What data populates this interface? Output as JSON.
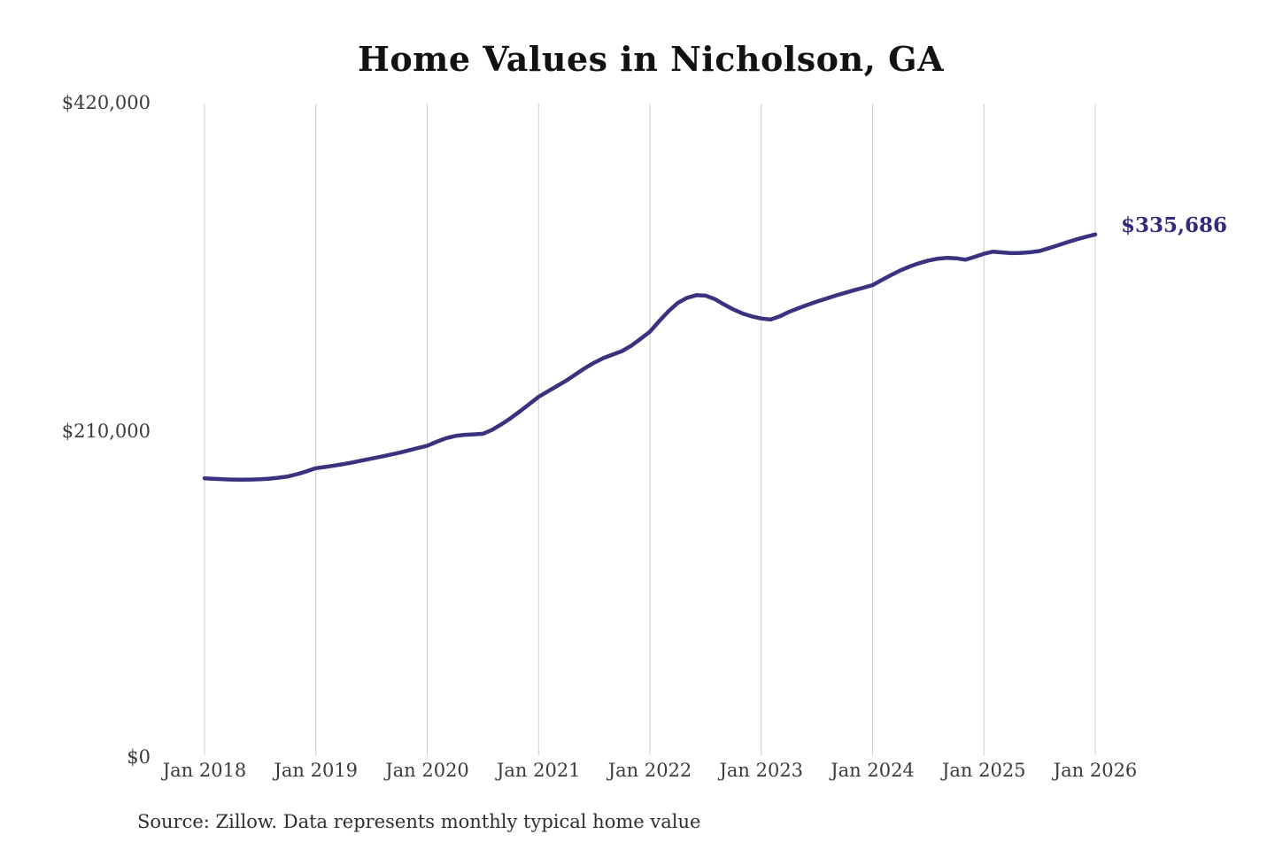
{
  "title": "Home Values in Nicholson, GA",
  "source_note": "Source: Zillow. Data represents monthly typical home value",
  "end_label": "$335,686",
  "colors": {
    "line": "#39327f",
    "end_label": "#312b7c",
    "grid": "#cccccc",
    "axis_text": "#3b3b3b",
    "title_text": "#121212",
    "background": "#ffffff"
  },
  "chart_data": {
    "type": "line",
    "title": "Home Values in Nicholson, GA",
    "series_name": "Monthly typical home value",
    "unit": "USD",
    "ylim": [
      0,
      420000
    ],
    "grid": "vertical-only",
    "legend": "none",
    "final_value": 335686,
    "y_ticks": [
      {
        "label": "$420,000",
        "value": 420000
      },
      {
        "label": "$210,000",
        "value": 210000
      },
      {
        "label": "$0",
        "value": 0
      }
    ],
    "x_ticks": [
      "Jan 2018",
      "Jan 2019",
      "Jan 2020",
      "Jan 2021",
      "Jan 2022",
      "Jan 2023",
      "Jan 2024",
      "Jan 2025",
      "Jan 2026"
    ],
    "x": [
      "2018-01",
      "2018-02",
      "2018-03",
      "2018-04",
      "2018-05",
      "2018-06",
      "2018-07",
      "2018-08",
      "2018-09",
      "2018-10",
      "2018-11",
      "2018-12",
      "2019-01",
      "2019-02",
      "2019-03",
      "2019-04",
      "2019-05",
      "2019-06",
      "2019-07",
      "2019-08",
      "2019-09",
      "2019-10",
      "2019-11",
      "2019-12",
      "2020-01",
      "2020-02",
      "2020-03",
      "2020-04",
      "2020-05",
      "2020-06",
      "2020-07",
      "2020-08",
      "2020-09",
      "2020-10",
      "2020-11",
      "2020-12",
      "2021-01",
      "2021-02",
      "2021-03",
      "2021-04",
      "2021-05",
      "2021-06",
      "2021-07",
      "2021-08",
      "2021-09",
      "2021-10",
      "2021-11",
      "2021-12",
      "2022-01",
      "2022-02",
      "2022-03",
      "2022-04",
      "2022-05",
      "2022-06",
      "2022-07",
      "2022-08",
      "2022-09",
      "2022-10",
      "2022-11",
      "2022-12",
      "2023-01",
      "2023-02",
      "2023-03",
      "2023-04",
      "2023-05",
      "2023-06",
      "2023-07",
      "2023-08",
      "2023-09",
      "2023-10",
      "2023-11",
      "2023-12",
      "2024-01",
      "2024-02",
      "2024-03",
      "2024-04",
      "2024-05",
      "2024-06",
      "2024-07",
      "2024-08",
      "2024-09",
      "2024-10",
      "2024-11",
      "2024-12",
      "2025-01",
      "2025-02",
      "2025-03",
      "2025-04",
      "2025-05",
      "2025-06",
      "2025-07",
      "2025-08",
      "2025-09",
      "2025-10",
      "2025-11",
      "2025-12",
      "2026-01"
    ],
    "values": [
      178500,
      178200,
      177900,
      177700,
      177600,
      177700,
      177900,
      178300,
      178900,
      179700,
      181200,
      183000,
      185000,
      185800,
      186700,
      187700,
      188800,
      190000,
      191200,
      192400,
      193700,
      195000,
      196500,
      198000,
      199500,
      202000,
      204300,
      205800,
      206500,
      206800,
      207200,
      209800,
      213300,
      217300,
      221700,
      226300,
      231000,
      234500,
      238000,
      241500,
      245500,
      249500,
      253000,
      256000,
      258300,
      260500,
      264000,
      268400,
      273000,
      279800,
      286200,
      291500,
      294800,
      296500,
      296200,
      294000,
      290500,
      287300,
      284700,
      282800,
      281500,
      280800,
      282900,
      285800,
      288100,
      290300,
      292400,
      294300,
      296200,
      298000,
      299700,
      301300,
      303000,
      306300,
      309500,
      312500,
      315000,
      317100,
      318800,
      320000,
      320600,
      320300,
      319400,
      321200,
      323200,
      324600,
      324100,
      323600,
      323800,
      324200,
      325000,
      326800,
      328700,
      330700,
      332500,
      334200,
      335686
    ]
  }
}
